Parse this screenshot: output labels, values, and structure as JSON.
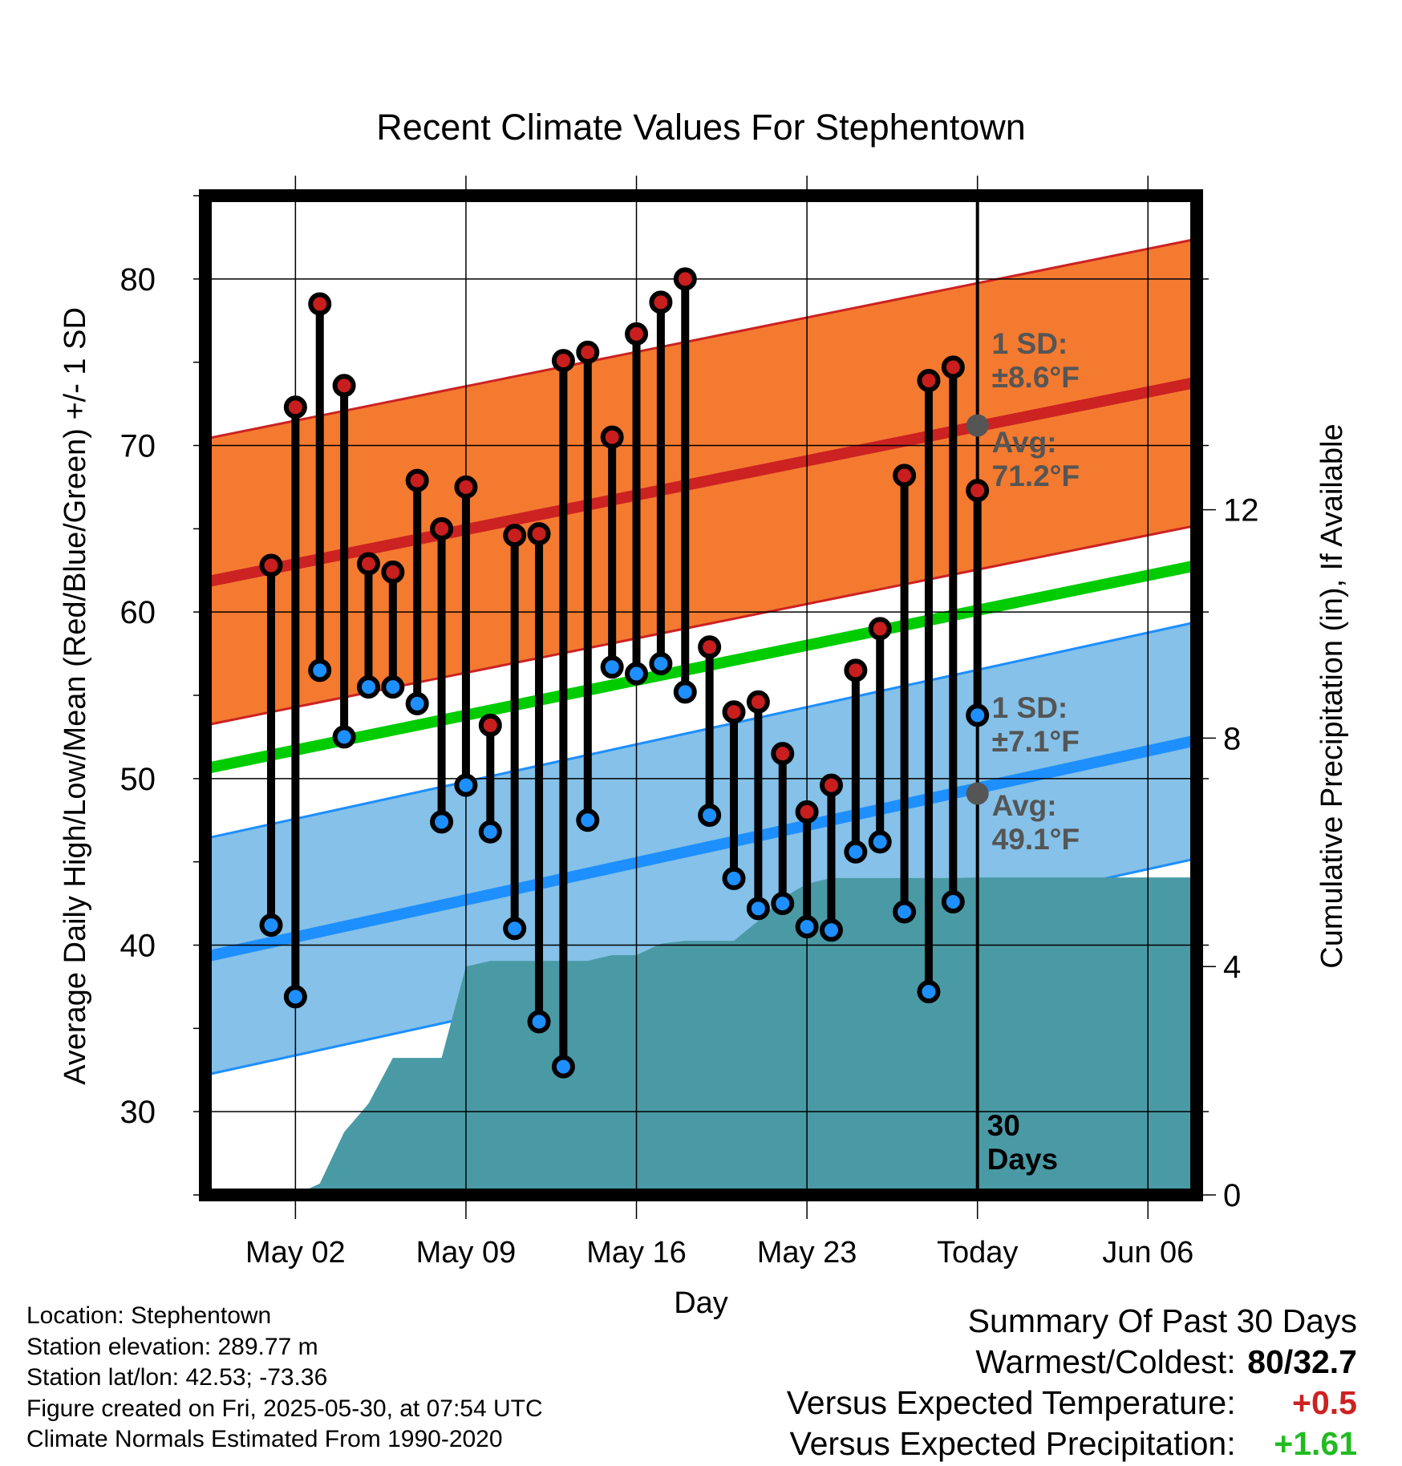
{
  "chart_data": {
    "type": "line",
    "title": "Recent Climate Values For Stephentown",
    "xlabel": "Day",
    "ylabel_left": "Average Daily High/Low/Mean (Red/Blue/Green) +/- 1 SD",
    "ylabel_right": "Cumulative Precipitation (in), If Available",
    "x_tick_labels": [
      "May 02",
      "May 09",
      "May 16",
      "May 23",
      "Today",
      "Jun 06"
    ],
    "x_tick_days": [
      2,
      9,
      16,
      23,
      30,
      37
    ],
    "xlim_days": [
      -1.7,
      39.0
    ],
    "ylim_left": [
      25,
      85
    ],
    "ylim_right": [
      0,
      17.5
    ],
    "y_left_ticks": [
      30,
      40,
      50,
      60,
      70,
      80
    ],
    "y_left_tick_labels": [
      "30",
      "40",
      "50",
      "60",
      "70",
      "80"
    ],
    "y_right_ticks": [
      0,
      4,
      8,
      12
    ],
    "y_right_tick_labels": [
      "0",
      "4",
      "8",
      "12"
    ],
    "today_day": 30,
    "today_label": [
      "30",
      "Days"
    ],
    "days": [
      1,
      2,
      3,
      4,
      5,
      6,
      7,
      8,
      9,
      10,
      11,
      12,
      13,
      14,
      15,
      16,
      17,
      18,
      19,
      20,
      21,
      22,
      23,
      24,
      25,
      26,
      27,
      28,
      29
    ],
    "highs": [
      62.8,
      72.3,
      78.5,
      73.6,
      62.9,
      62.4,
      67.9,
      65.0,
      67.5,
      53.2,
      64.6,
      64.7,
      75.1,
      75.6,
      70.5,
      76.7,
      78.6,
      80.0,
      57.9,
      54.0,
      54.6,
      51.5,
      48.0,
      49.6,
      56.5,
      59.0,
      68.2,
      73.9,
      74.7,
      67.3
    ],
    "lows": [
      41.2,
      36.9,
      56.5,
      52.5,
      55.5,
      55.5,
      54.5,
      47.4,
      49.6,
      46.8,
      41.0,
      35.4,
      32.7,
      47.5,
      56.7,
      56.3,
      56.9,
      55.2,
      47.8,
      44.0,
      42.2,
      42.5,
      41.1,
      40.9,
      45.6,
      46.2,
      42.0,
      37.2,
      42.6,
      53.8
    ],
    "obs_days": [
      1,
      2,
      3,
      4,
      5,
      6,
      7,
      8,
      9,
      10,
      11,
      12,
      13,
      14,
      15,
      16,
      17,
      18,
      19,
      20,
      21,
      22,
      23,
      24,
      25,
      26,
      27,
      28,
      29,
      30
    ],
    "normal_high": {
      "start": 61.8,
      "end": 73.8,
      "sd": 8.6
    },
    "normal_low": {
      "start": 39.3,
      "end": 52.3,
      "sd": 7.1
    },
    "normal_mean": {
      "start": 50.6,
      "end": 62.8
    },
    "annotations": {
      "high_sd": [
        "1 SD:",
        "±8.6°F"
      ],
      "high_avg": [
        "Avg:",
        "71.2°F"
      ],
      "low_sd": [
        "1 SD:",
        "±7.1°F"
      ],
      "low_avg": [
        "Avg:",
        "49.1°F"
      ],
      "high_avg_value": 71.2,
      "low_avg_value": 49.1
    },
    "precip_days": [
      0.5,
      1,
      2,
      3,
      4,
      5,
      6,
      7,
      8,
      9,
      10,
      11,
      12,
      13,
      14,
      15,
      16,
      17,
      18,
      19,
      20,
      21,
      22,
      23,
      24,
      25,
      26,
      27,
      28,
      29,
      30,
      39
    ],
    "precip_cum": [
      0.0,
      0.0,
      0.0,
      0.2,
      1.1,
      1.6,
      2.4,
      2.4,
      2.4,
      4.0,
      4.1,
      4.1,
      4.1,
      4.1,
      4.1,
      4.2,
      4.2,
      4.4,
      4.45,
      4.45,
      4.45,
      4.8,
      5.2,
      5.45,
      5.55,
      5.55,
      5.55,
      5.55,
      5.55,
      5.55,
      5.56,
      5.56
    ],
    "colors": {
      "high_band": "#f47a30",
      "high_line": "#cc2222",
      "low_band": "#85c1e8",
      "low_line": "#1e8fff",
      "mean_line": "#00cc00",
      "precip": "#4a9aa5",
      "high_marker": "#c81e1e",
      "low_marker": "#1e8fff",
      "annotation": "#555555"
    }
  },
  "footer": {
    "location": "Location: Stephentown",
    "elevation": "Station elevation: 289.77 m",
    "latlon": "Station lat/lon: 42.53; -73.36",
    "created": "Figure created on Fri, 2025-05-30, at 07:54 UTC",
    "normals": "Climate Normals Estimated From 1990-2020"
  },
  "summary": {
    "title": "Summary Of Past 30 Days",
    "warmest_label": "Warmest/Coldest:",
    "warmest_value_a": "80",
    "warmest_value_b": "/32.7",
    "temp_label": "Versus Expected Temperature:",
    "temp_value": "+0.5",
    "precip_label": "Versus Expected Precipitation:",
    "precip_value": "+1.61",
    "temp_color": "#cc2222",
    "precip_color": "#22bb22"
  }
}
